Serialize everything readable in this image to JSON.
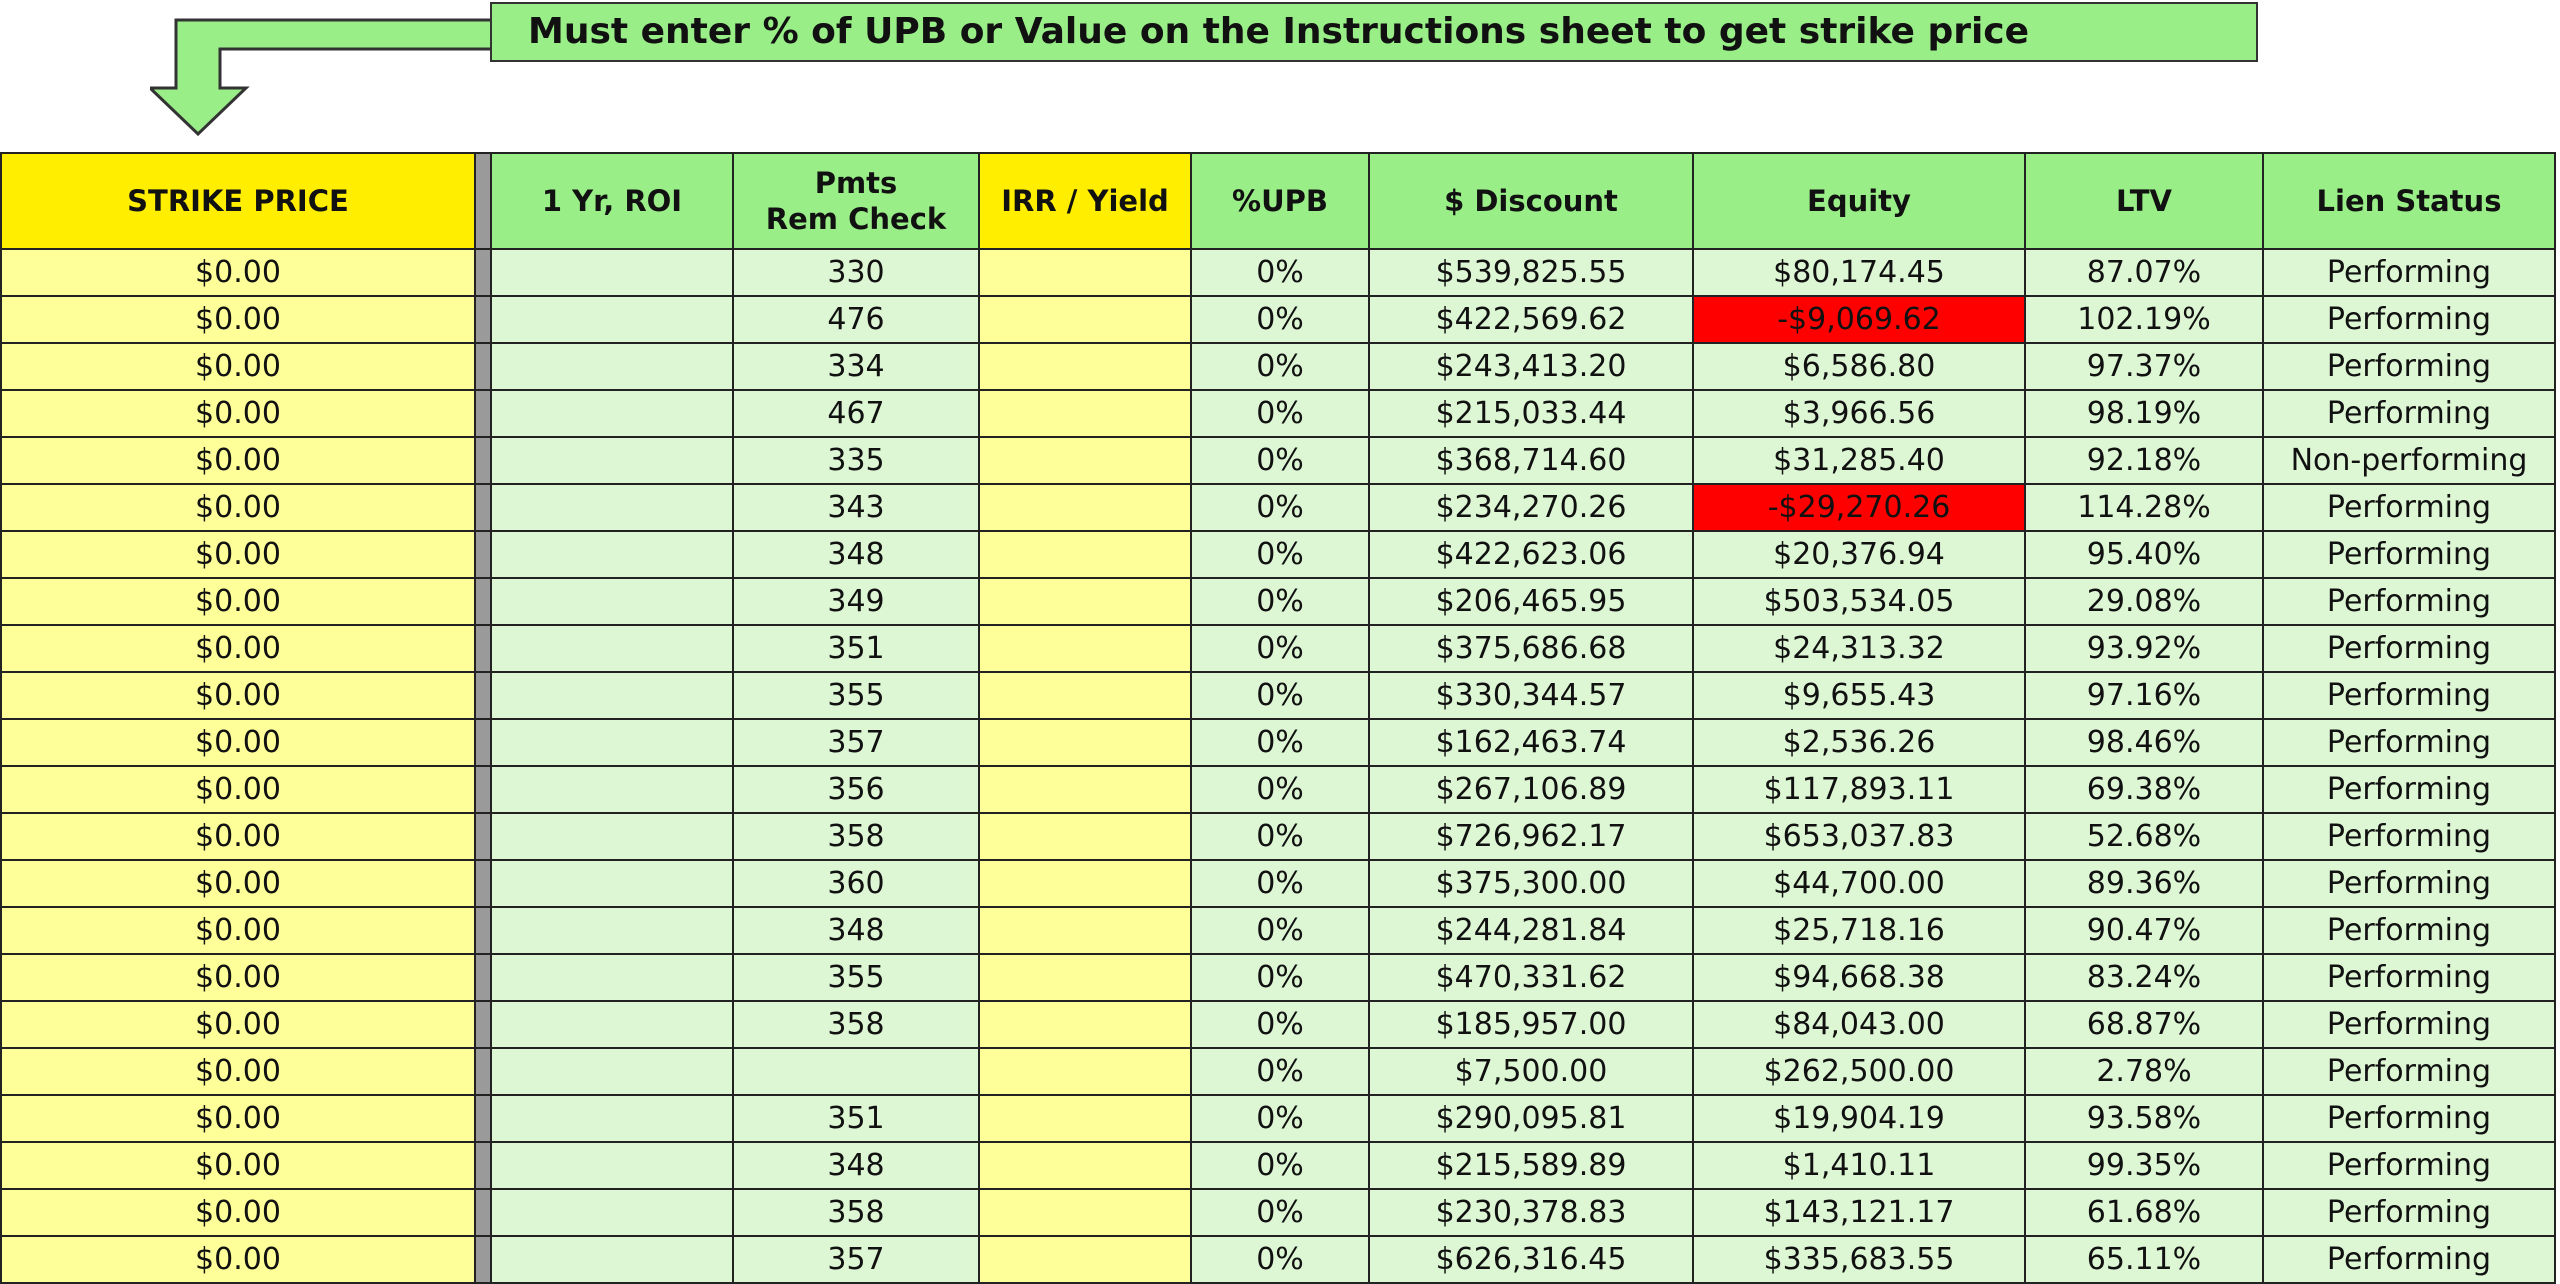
{
  "banner": {
    "text": "Must enter % of UPB or Value on the Instructions sheet to get strike price",
    "icon": "down-arrow-icon",
    "arrow_color": "#99ee88"
  },
  "colors": {
    "header_strike": "#ffee00",
    "yellow_cell": "#ffff99",
    "green_header": "#99ee88",
    "green_cell": "#ddf6d4",
    "negative_cell": "#ff0000"
  },
  "headers": {
    "strike_price": "STRIKE PRICE",
    "roi": "1 Yr, ROI",
    "pmts_line1": "Pmts",
    "pmts_line2": "Rem Check",
    "irr": "IRR / Yield",
    "upb": "%UPB",
    "discount": "$ Discount",
    "equity": "Equity",
    "ltv": "LTV",
    "lien": "Lien Status"
  },
  "rows": [
    {
      "strike": "$0.00",
      "roi": "",
      "pmts": "330",
      "irr": "",
      "upb": "0%",
      "discount": "$539,825.55",
      "equity": "$80,174.45",
      "ltv": "87.07%",
      "lien": "Performing",
      "neg": false
    },
    {
      "strike": "$0.00",
      "roi": "",
      "pmts": "476",
      "irr": "",
      "upb": "0%",
      "discount": "$422,569.62",
      "equity": "-$9,069.62",
      "ltv": "102.19%",
      "lien": "Performing",
      "neg": true
    },
    {
      "strike": "$0.00",
      "roi": "",
      "pmts": "334",
      "irr": "",
      "upb": "0%",
      "discount": "$243,413.20",
      "equity": "$6,586.80",
      "ltv": "97.37%",
      "lien": "Performing",
      "neg": false
    },
    {
      "strike": "$0.00",
      "roi": "",
      "pmts": "467",
      "irr": "",
      "upb": "0%",
      "discount": "$215,033.44",
      "equity": "$3,966.56",
      "ltv": "98.19%",
      "lien": "Performing",
      "neg": false
    },
    {
      "strike": "$0.00",
      "roi": "",
      "pmts": "335",
      "irr": "",
      "upb": "0%",
      "discount": "$368,714.60",
      "equity": "$31,285.40",
      "ltv": "92.18%",
      "lien": "Non-performing",
      "neg": false
    },
    {
      "strike": "$0.00",
      "roi": "",
      "pmts": "343",
      "irr": "",
      "upb": "0%",
      "discount": "$234,270.26",
      "equity": "-$29,270.26",
      "ltv": "114.28%",
      "lien": "Performing",
      "neg": true
    },
    {
      "strike": "$0.00",
      "roi": "",
      "pmts": "348",
      "irr": "",
      "upb": "0%",
      "discount": "$422,623.06",
      "equity": "$20,376.94",
      "ltv": "95.40%",
      "lien": "Performing",
      "neg": false
    },
    {
      "strike": "$0.00",
      "roi": "",
      "pmts": "349",
      "irr": "",
      "upb": "0%",
      "discount": "$206,465.95",
      "equity": "$503,534.05",
      "ltv": "29.08%",
      "lien": "Performing",
      "neg": false
    },
    {
      "strike": "$0.00",
      "roi": "",
      "pmts": "351",
      "irr": "",
      "upb": "0%",
      "discount": "$375,686.68",
      "equity": "$24,313.32",
      "ltv": "93.92%",
      "lien": "Performing",
      "neg": false
    },
    {
      "strike": "$0.00",
      "roi": "",
      "pmts": "355",
      "irr": "",
      "upb": "0%",
      "discount": "$330,344.57",
      "equity": "$9,655.43",
      "ltv": "97.16%",
      "lien": "Performing",
      "neg": false
    },
    {
      "strike": "$0.00",
      "roi": "",
      "pmts": "357",
      "irr": "",
      "upb": "0%",
      "discount": "$162,463.74",
      "equity": "$2,536.26",
      "ltv": "98.46%",
      "lien": "Performing",
      "neg": false
    },
    {
      "strike": "$0.00",
      "roi": "",
      "pmts": "356",
      "irr": "",
      "upb": "0%",
      "discount": "$267,106.89",
      "equity": "$117,893.11",
      "ltv": "69.38%",
      "lien": "Performing",
      "neg": false
    },
    {
      "strike": "$0.00",
      "roi": "",
      "pmts": "358",
      "irr": "",
      "upb": "0%",
      "discount": "$726,962.17",
      "equity": "$653,037.83",
      "ltv": "52.68%",
      "lien": "Performing",
      "neg": false
    },
    {
      "strike": "$0.00",
      "roi": "",
      "pmts": "360",
      "irr": "",
      "upb": "0%",
      "discount": "$375,300.00",
      "equity": "$44,700.00",
      "ltv": "89.36%",
      "lien": "Performing",
      "neg": false
    },
    {
      "strike": "$0.00",
      "roi": "",
      "pmts": "348",
      "irr": "",
      "upb": "0%",
      "discount": "$244,281.84",
      "equity": "$25,718.16",
      "ltv": "90.47%",
      "lien": "Performing",
      "neg": false
    },
    {
      "strike": "$0.00",
      "roi": "",
      "pmts": "355",
      "irr": "",
      "upb": "0%",
      "discount": "$470,331.62",
      "equity": "$94,668.38",
      "ltv": "83.24%",
      "lien": "Performing",
      "neg": false
    },
    {
      "strike": "$0.00",
      "roi": "",
      "pmts": "358",
      "irr": "",
      "upb": "0%",
      "discount": "$185,957.00",
      "equity": "$84,043.00",
      "ltv": "68.87%",
      "lien": "Performing",
      "neg": false
    },
    {
      "strike": "$0.00",
      "roi": "",
      "pmts": "",
      "irr": "",
      "upb": "0%",
      "discount": "$7,500.00",
      "equity": "$262,500.00",
      "ltv": "2.78%",
      "lien": "Performing",
      "neg": false
    },
    {
      "strike": "$0.00",
      "roi": "",
      "pmts": "351",
      "irr": "",
      "upb": "0%",
      "discount": "$290,095.81",
      "equity": "$19,904.19",
      "ltv": "93.58%",
      "lien": "Performing",
      "neg": false
    },
    {
      "strike": "$0.00",
      "roi": "",
      "pmts": "348",
      "irr": "",
      "upb": "0%",
      "discount": "$215,589.89",
      "equity": "$1,410.11",
      "ltv": "99.35%",
      "lien": "Performing",
      "neg": false
    },
    {
      "strike": "$0.00",
      "roi": "",
      "pmts": "358",
      "irr": "",
      "upb": "0%",
      "discount": "$230,378.83",
      "equity": "$143,121.17",
      "ltv": "61.68%",
      "lien": "Performing",
      "neg": false
    },
    {
      "strike": "$0.00",
      "roi": "",
      "pmts": "357",
      "irr": "",
      "upb": "0%",
      "discount": "$626,316.45",
      "equity": "$335,683.55",
      "ltv": "65.11%",
      "lien": "Performing",
      "neg": false
    }
  ]
}
